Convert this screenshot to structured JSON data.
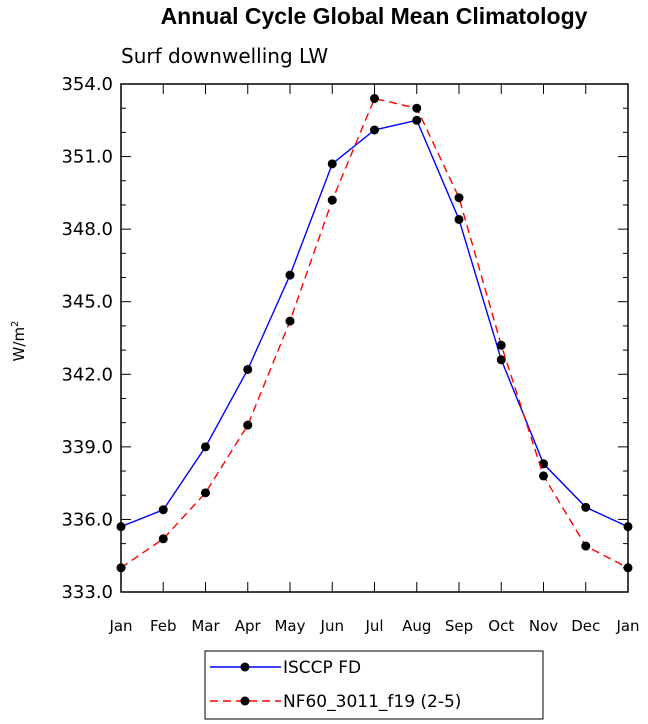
{
  "chart_data": {
    "type": "line",
    "title": "Annual Cycle Global Mean Climatology",
    "subtitle": "Surf downwelling LW",
    "ylabel": "W/m",
    "ylabel_sup": "2",
    "xlabel": "",
    "categories": [
      "Jan",
      "Feb",
      "Mar",
      "Apr",
      "May",
      "Jun",
      "Jul",
      "Aug",
      "Sep",
      "Oct",
      "Nov",
      "Dec",
      "Jan"
    ],
    "ylim": [
      333.0,
      354.0
    ],
    "yticks": [
      333.0,
      336.0,
      339.0,
      342.0,
      345.0,
      348.0,
      351.0,
      354.0
    ],
    "ytick_labels": [
      "333.0",
      "336.0",
      "339.0",
      "342.0",
      "345.0",
      "348.0",
      "351.0",
      "354.0"
    ],
    "yminor_step": 1.0,
    "legend_position": "bottom-center",
    "series": [
      {
        "name": "ISCCP FD",
        "color": "#0000ff",
        "dash": "solid",
        "values": [
          335.7,
          336.4,
          339.0,
          342.2,
          346.1,
          350.7,
          352.1,
          352.5,
          348.4,
          342.6,
          338.3,
          336.5,
          335.7
        ]
      },
      {
        "name": "NF60_3011_f19 (2-5)",
        "color": "#ff0000",
        "dash": "dashed",
        "values": [
          334.0,
          335.2,
          337.1,
          339.9,
          344.2,
          349.2,
          353.4,
          353.0,
          349.3,
          343.2,
          337.8,
          334.9,
          334.0
        ]
      }
    ]
  }
}
